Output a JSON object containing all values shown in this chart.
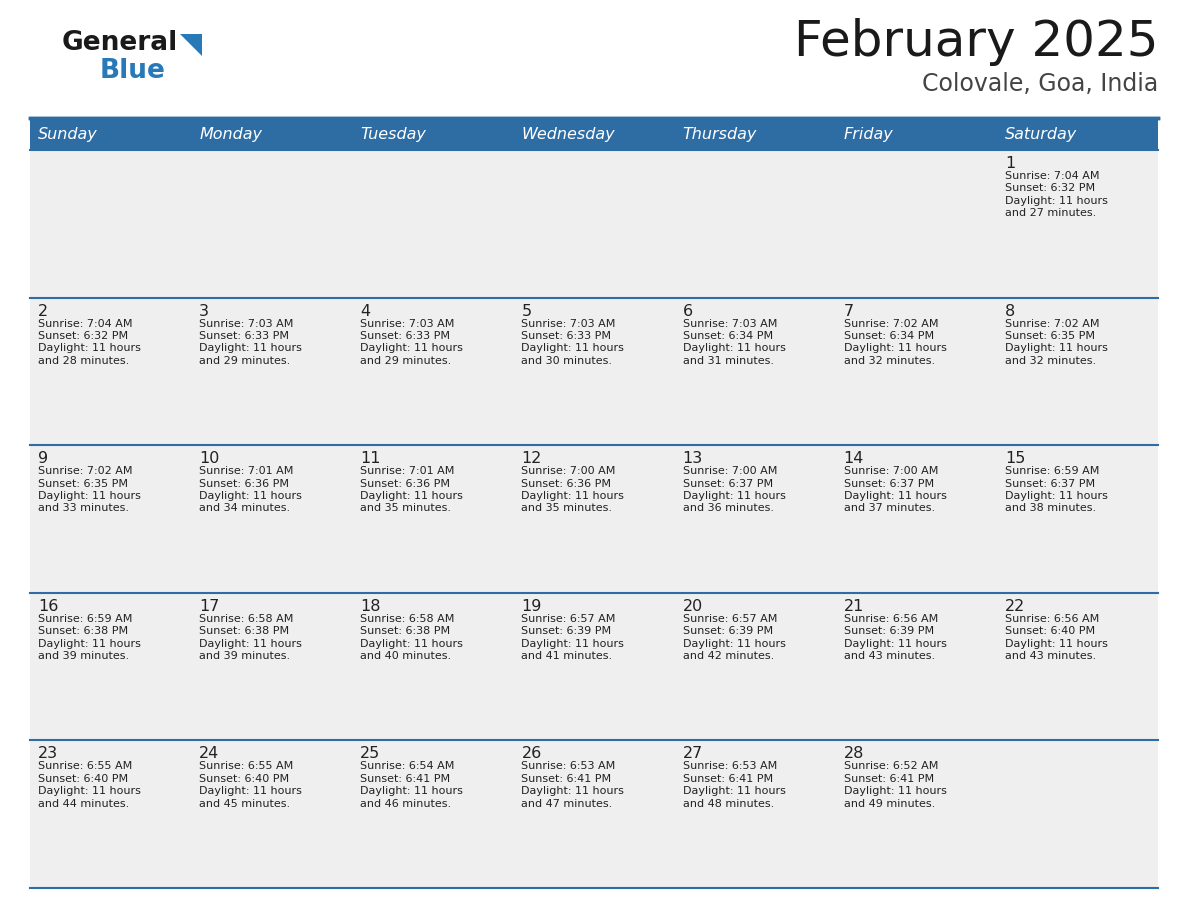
{
  "title": "February 2025",
  "subtitle": "Colovale, Goa, India",
  "header_bg": "#2E6DA4",
  "header_text_color": "#FFFFFF",
  "cell_bg": "#EFEFEF",
  "border_color": "#2E6DA4",
  "title_color": "#1a1a1a",
  "subtitle_color": "#444444",
  "text_color": "#222222",
  "day_names": [
    "Sunday",
    "Monday",
    "Tuesday",
    "Wednesday",
    "Thursday",
    "Friday",
    "Saturday"
  ],
  "weeks": [
    [
      {
        "day": null,
        "sunrise": null,
        "sunset": null,
        "daylight": null
      },
      {
        "day": null,
        "sunrise": null,
        "sunset": null,
        "daylight": null
      },
      {
        "day": null,
        "sunrise": null,
        "sunset": null,
        "daylight": null
      },
      {
        "day": null,
        "sunrise": null,
        "sunset": null,
        "daylight": null
      },
      {
        "day": null,
        "sunrise": null,
        "sunset": null,
        "daylight": null
      },
      {
        "day": null,
        "sunrise": null,
        "sunset": null,
        "daylight": null
      },
      {
        "day": 1,
        "sunrise": "7:04 AM",
        "sunset": "6:32 PM",
        "daylight": "11 hours",
        "daylight2": "and 27 minutes."
      }
    ],
    [
      {
        "day": 2,
        "sunrise": "7:04 AM",
        "sunset": "6:32 PM",
        "daylight": "11 hours",
        "daylight2": "and 28 minutes."
      },
      {
        "day": 3,
        "sunrise": "7:03 AM",
        "sunset": "6:33 PM",
        "daylight": "11 hours",
        "daylight2": "and 29 minutes."
      },
      {
        "day": 4,
        "sunrise": "7:03 AM",
        "sunset": "6:33 PM",
        "daylight": "11 hours",
        "daylight2": "and 29 minutes."
      },
      {
        "day": 5,
        "sunrise": "7:03 AM",
        "sunset": "6:33 PM",
        "daylight": "11 hours",
        "daylight2": "and 30 minutes."
      },
      {
        "day": 6,
        "sunrise": "7:03 AM",
        "sunset": "6:34 PM",
        "daylight": "11 hours",
        "daylight2": "and 31 minutes."
      },
      {
        "day": 7,
        "sunrise": "7:02 AM",
        "sunset": "6:34 PM",
        "daylight": "11 hours",
        "daylight2": "and 32 minutes."
      },
      {
        "day": 8,
        "sunrise": "7:02 AM",
        "sunset": "6:35 PM",
        "daylight": "11 hours",
        "daylight2": "and 32 minutes."
      }
    ],
    [
      {
        "day": 9,
        "sunrise": "7:02 AM",
        "sunset": "6:35 PM",
        "daylight": "11 hours",
        "daylight2": "and 33 minutes."
      },
      {
        "day": 10,
        "sunrise": "7:01 AM",
        "sunset": "6:36 PM",
        "daylight": "11 hours",
        "daylight2": "and 34 minutes."
      },
      {
        "day": 11,
        "sunrise": "7:01 AM",
        "sunset": "6:36 PM",
        "daylight": "11 hours",
        "daylight2": "and 35 minutes."
      },
      {
        "day": 12,
        "sunrise": "7:00 AM",
        "sunset": "6:36 PM",
        "daylight": "11 hours",
        "daylight2": "and 35 minutes."
      },
      {
        "day": 13,
        "sunrise": "7:00 AM",
        "sunset": "6:37 PM",
        "daylight": "11 hours",
        "daylight2": "and 36 minutes."
      },
      {
        "day": 14,
        "sunrise": "7:00 AM",
        "sunset": "6:37 PM",
        "daylight": "11 hours",
        "daylight2": "and 37 minutes."
      },
      {
        "day": 15,
        "sunrise": "6:59 AM",
        "sunset": "6:37 PM",
        "daylight": "11 hours",
        "daylight2": "and 38 minutes."
      }
    ],
    [
      {
        "day": 16,
        "sunrise": "6:59 AM",
        "sunset": "6:38 PM",
        "daylight": "11 hours",
        "daylight2": "and 39 minutes."
      },
      {
        "day": 17,
        "sunrise": "6:58 AM",
        "sunset": "6:38 PM",
        "daylight": "11 hours",
        "daylight2": "and 39 minutes."
      },
      {
        "day": 18,
        "sunrise": "6:58 AM",
        "sunset": "6:38 PM",
        "daylight": "11 hours",
        "daylight2": "and 40 minutes."
      },
      {
        "day": 19,
        "sunrise": "6:57 AM",
        "sunset": "6:39 PM",
        "daylight": "11 hours",
        "daylight2": "and 41 minutes."
      },
      {
        "day": 20,
        "sunrise": "6:57 AM",
        "sunset": "6:39 PM",
        "daylight": "11 hours",
        "daylight2": "and 42 minutes."
      },
      {
        "day": 21,
        "sunrise": "6:56 AM",
        "sunset": "6:39 PM",
        "daylight": "11 hours",
        "daylight2": "and 43 minutes."
      },
      {
        "day": 22,
        "sunrise": "6:56 AM",
        "sunset": "6:40 PM",
        "daylight": "11 hours",
        "daylight2": "and 43 minutes."
      }
    ],
    [
      {
        "day": 23,
        "sunrise": "6:55 AM",
        "sunset": "6:40 PM",
        "daylight": "11 hours",
        "daylight2": "and 44 minutes."
      },
      {
        "day": 24,
        "sunrise": "6:55 AM",
        "sunset": "6:40 PM",
        "daylight": "11 hours",
        "daylight2": "and 45 minutes."
      },
      {
        "day": 25,
        "sunrise": "6:54 AM",
        "sunset": "6:41 PM",
        "daylight": "11 hours",
        "daylight2": "and 46 minutes."
      },
      {
        "day": 26,
        "sunrise": "6:53 AM",
        "sunset": "6:41 PM",
        "daylight": "11 hours",
        "daylight2": "and 47 minutes."
      },
      {
        "day": 27,
        "sunrise": "6:53 AM",
        "sunset": "6:41 PM",
        "daylight": "11 hours",
        "daylight2": "and 48 minutes."
      },
      {
        "day": 28,
        "sunrise": "6:52 AM",
        "sunset": "6:41 PM",
        "daylight": "11 hours",
        "daylight2": "and 49 minutes."
      },
      {
        "day": null,
        "sunrise": null,
        "sunset": null,
        "daylight": null,
        "daylight2": null
      }
    ]
  ],
  "logo_text1": "General",
  "logo_text2": "Blue",
  "logo_text1_color": "#1a1a1a",
  "logo_text2_color": "#2779B8",
  "logo_triangle_color": "#2779B8"
}
